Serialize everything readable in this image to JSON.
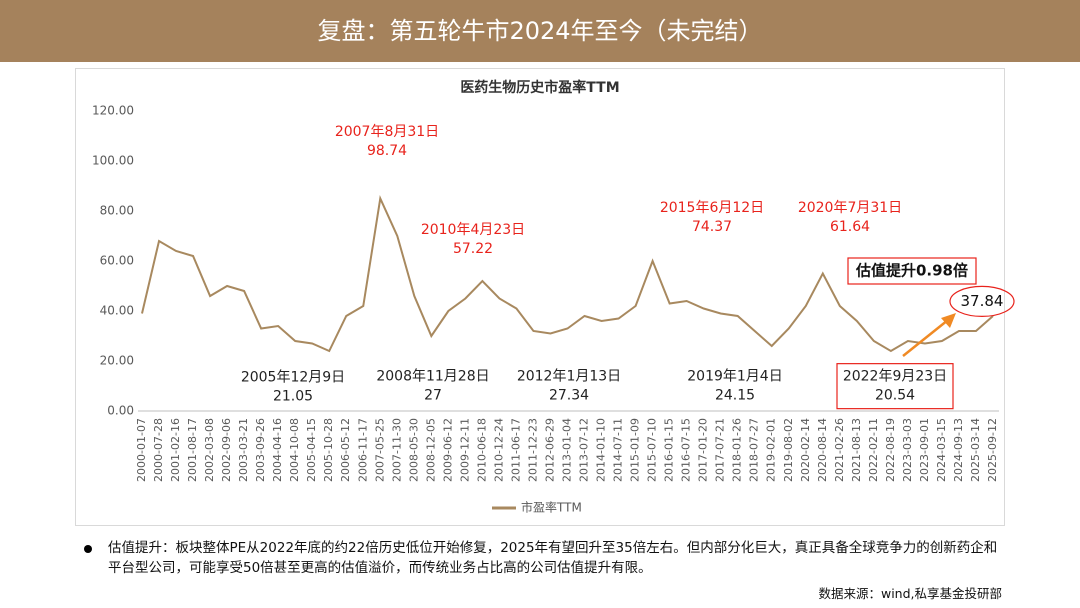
{
  "header": {
    "title": "复盘：第五轮牛市2024年至今（未完结）"
  },
  "chart_data": {
    "type": "line",
    "title": "医药生物历史市盈率TTM",
    "categories": [
      "2000-01-07",
      "2000-07-28",
      "2001-02-16",
      "2001-08-17",
      "2002-03-08",
      "2002-09-06",
      "2003-03-21",
      "2003-09-26",
      "2004-04-16",
      "2004-10-08",
      "2005-04-15",
      "2005-10-28",
      "2006-05-12",
      "2006-11-17",
      "2007-05-25",
      "2007-11-30",
      "2008-05-30",
      "2008-12-05",
      "2009-06-12",
      "2009-12-11",
      "2010-06-18",
      "2010-12-24",
      "2011-06-17",
      "2011-12-23",
      "2012-06-29",
      "2013-01-04",
      "2013-07-12",
      "2014-01-10",
      "2014-07-11",
      "2015-01-09",
      "2015-07-10",
      "2016-01-15",
      "2016-07-15",
      "2017-01-20",
      "2017-07-21",
      "2018-01-26",
      "2018-07-27",
      "2019-02-01",
      "2019-08-02",
      "2020-02-14",
      "2020-08-14",
      "2021-02-26",
      "2021-08-13",
      "2022-02-11",
      "2022-08-19",
      "2023-03-03",
      "2023-09-01",
      "2024-03-15",
      "2024-09-13",
      "2025-03-14",
      "2025-09-12"
    ],
    "series": [
      {
        "name": "市盈率TTM",
        "color": "#a8895f",
        "values": [
          39,
          68,
          64,
          62,
          46,
          50,
          48,
          33,
          34,
          28,
          27,
          24,
          38,
          42,
          85,
          70,
          46,
          30,
          40,
          45,
          52,
          45,
          41,
          32,
          31,
          33,
          38,
          36,
          37,
          42,
          60,
          43,
          44,
          41,
          39,
          38,
          32,
          26,
          33,
          42,
          55,
          42,
          36,
          28,
          24,
          28,
          27,
          28,
          32,
          32,
          38
        ]
      }
    ],
    "ylim": [
      0,
      120
    ],
    "yticks": [
      {
        "value": 0,
        "label": "0.00"
      },
      {
        "value": 20,
        "label": "20.00"
      },
      {
        "value": 40,
        "label": "40.00"
      },
      {
        "value": 60,
        "label": "60.00"
      },
      {
        "value": 80,
        "label": "80.00"
      },
      {
        "value": 100,
        "label": "100.00"
      },
      {
        "value": 120,
        "label": "120.00"
      }
    ],
    "grid": false,
    "annotations": [
      {
        "date": "2007年8月31日",
        "value": 98.74
      },
      {
        "date": "2005年12月9日",
        "value": 21.05
      },
      {
        "date": "2010年4月23日",
        "value": 57.22
      },
      {
        "date": "2008年11月28日",
        "value": 27
      },
      {
        "date": "2012年1月13日",
        "value": 27.34
      },
      {
        "date": "2015年6月12日",
        "value": 74.37
      },
      {
        "date": "2019年1月4日",
        "value": 24.15
      },
      {
        "date": "2020年7月31日",
        "value": 61.64
      },
      {
        "date": "2022年9月23日",
        "value": 20.54
      }
    ],
    "callout": {
      "text": "估值提升0.98倍",
      "value": 37.84
    }
  },
  "notes": {
    "bullet": "估值提升：板块整体PE从2022年底的约22倍历史低位开始修复，2025年有望回升至35倍左右。但内部分化巨大，真正具备全球竞争力的创新药企和平台型公司，可能享受50倍甚至更高的估值溢价，而传统业务占比高的公司估值提升有限。",
    "source": "数据来源：wind,私享基金投研部"
  }
}
